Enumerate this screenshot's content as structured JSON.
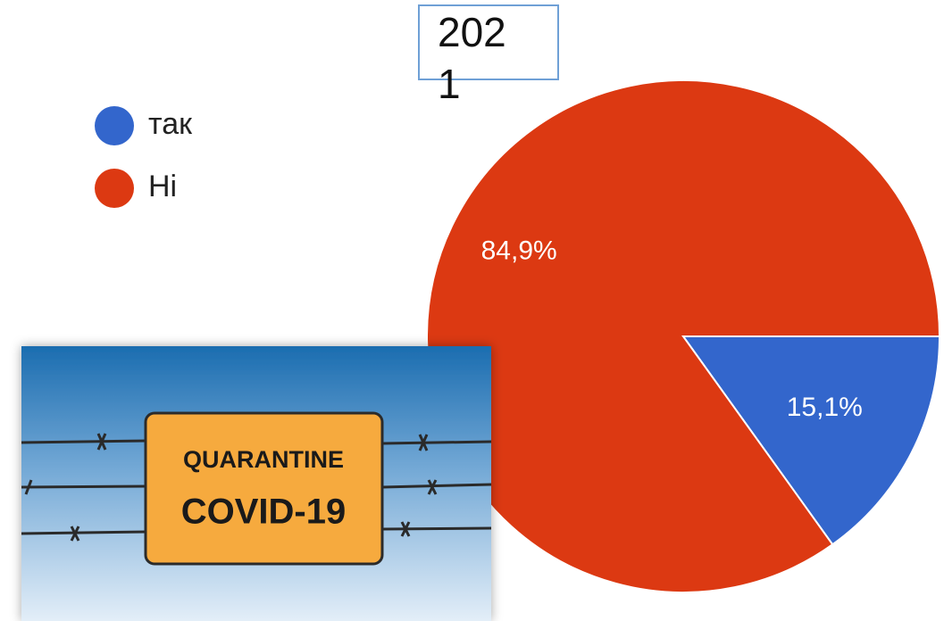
{
  "chart_data": {
    "type": "pie",
    "categories": [
      "так",
      "Ні"
    ],
    "values": [
      15.1,
      84.9
    ],
    "value_labels": [
      "15,1%",
      "84,9%"
    ],
    "colors": [
      "#3366cc",
      "#dc3912"
    ],
    "legend": "top-left",
    "annotations": [
      "2021",
      "QUARANTINE",
      "COVID-19"
    ]
  }
}
